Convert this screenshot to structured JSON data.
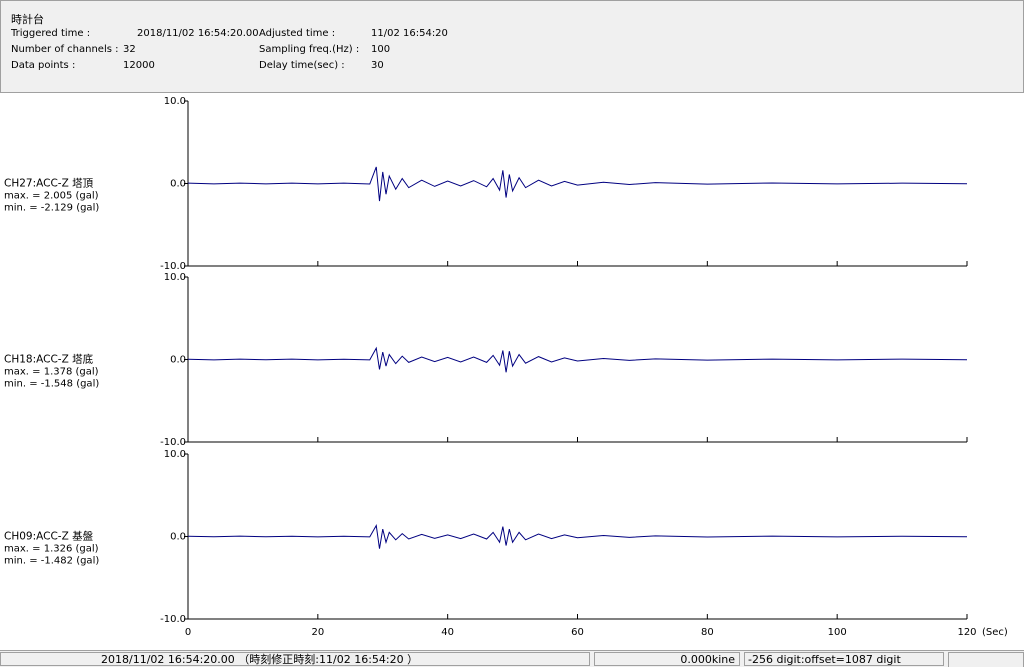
{
  "header": {
    "title": "時計台",
    "rows": [
      [
        {
          "label": "Triggered time :",
          "value": "2018/11/02 16:54:20.00"
        },
        {
          "label": "Adjusted time :",
          "value": "11/02 16:54:20"
        }
      ],
      [
        {
          "label": "Number of channels :",
          "value": 32
        },
        {
          "label": "Sampling freq.(Hz) :",
          "value": 100
        }
      ],
      [
        {
          "label": "Data points :",
          "value": 12000
        },
        {
          "label": "Delay time(sec) :",
          "value": 30
        }
      ]
    ]
  },
  "chart_data": [
    {
      "type": "line",
      "title": "CH27:ACC-Z 塔頂",
      "max_label": "max. = 2.005 (gal)",
      "min_label": "min. = -2.129 (gal)",
      "x": [
        0,
        4,
        8,
        12,
        16,
        20,
        24,
        28,
        29,
        29.5,
        30,
        30.5,
        31,
        32,
        33,
        34,
        36,
        38,
        40,
        42,
        44,
        46,
        47,
        48,
        48.5,
        49,
        49.5,
        50,
        51,
        52,
        54,
        56,
        58,
        60,
        64,
        68,
        72,
        80,
        90,
        100,
        110,
        120
      ],
      "series": [
        {
          "color": "#000080",
          "values": [
            0.04,
            -0.05,
            0.05,
            -0.04,
            0.05,
            -0.05,
            0.04,
            -0.06,
            2.005,
            -2.129,
            1.4,
            -1.3,
            0.9,
            -0.7,
            0.6,
            -0.5,
            0.4,
            -0.35,
            0.3,
            -0.3,
            0.35,
            -0.4,
            0.6,
            -0.8,
            1.6,
            -1.7,
            1.1,
            -0.9,
            0.7,
            -0.5,
            0.4,
            -0.3,
            0.25,
            -0.2,
            0.15,
            -0.12,
            0.1,
            -0.08,
            0.06,
            -0.05,
            0.04,
            -0.03
          ]
        }
      ],
      "xlim": [
        0,
        120
      ],
      "ylim": [
        -10,
        10
      ],
      "yticks": [
        {
          "value": 10,
          "label": "10.0"
        },
        {
          "value": 0,
          "label": "0.0"
        },
        {
          "value": -10,
          "label": "-10.0"
        }
      ]
    },
    {
      "type": "line",
      "title": "CH18:ACC-Z 塔底",
      "max_label": "max. = 1.378 (gal)",
      "min_label": "min. = -1.548 (gal)",
      "x": [
        0,
        4,
        8,
        12,
        16,
        20,
        24,
        28,
        29,
        29.5,
        30,
        30.5,
        31,
        32,
        33,
        34,
        36,
        38,
        40,
        42,
        44,
        46,
        47,
        48,
        48.5,
        49,
        49.5,
        50,
        51,
        52,
        54,
        56,
        58,
        60,
        64,
        68,
        72,
        80,
        90,
        100,
        110,
        120
      ],
      "series": [
        {
          "color": "#000080",
          "values": [
            0.03,
            -0.04,
            0.04,
            -0.03,
            0.04,
            -0.04,
            0.03,
            -0.05,
            1.378,
            -1.2,
            0.9,
            -0.8,
            0.6,
            -0.5,
            0.4,
            -0.35,
            0.3,
            -0.25,
            0.25,
            -0.3,
            0.3,
            -0.35,
            0.5,
            -0.7,
            1.1,
            -1.548,
            1.0,
            -0.8,
            0.6,
            -0.45,
            0.35,
            -0.3,
            0.2,
            -0.18,
            0.12,
            -0.1,
            0.08,
            -0.07,
            0.05,
            -0.04,
            0.04,
            -0.03
          ]
        }
      ],
      "xlim": [
        0,
        120
      ],
      "ylim": [
        -10,
        10
      ],
      "yticks": [
        {
          "value": 10,
          "label": "10.0"
        },
        {
          "value": 0,
          "label": "0.0"
        },
        {
          "value": -10,
          "label": "-10.0"
        }
      ]
    },
    {
      "type": "line",
      "title": "CH09:ACC-Z 基盤",
      "max_label": "max. = 1.326 (gal)",
      "min_label": "min. = -1.482 (gal)",
      "x": [
        0,
        4,
        8,
        12,
        16,
        20,
        24,
        28,
        29,
        29.5,
        30,
        30.5,
        31,
        32,
        33,
        34,
        36,
        38,
        40,
        42,
        44,
        46,
        47,
        48,
        48.5,
        49,
        49.5,
        50,
        51,
        52,
        54,
        56,
        58,
        60,
        64,
        68,
        72,
        80,
        90,
        100,
        110,
        120
      ],
      "series": [
        {
          "color": "#000080",
          "values": [
            0.03,
            -0.03,
            0.04,
            -0.03,
            0.03,
            -0.04,
            0.03,
            -0.05,
            1.326,
            -1.482,
            0.9,
            -0.7,
            0.5,
            -0.4,
            0.35,
            -0.3,
            0.25,
            -0.22,
            0.2,
            -0.25,
            0.3,
            -0.3,
            0.5,
            -0.7,
            1.2,
            -1.1,
            0.9,
            -0.7,
            0.5,
            -0.4,
            0.3,
            -0.25,
            0.2,
            -0.15,
            0.12,
            -0.1,
            0.08,
            -0.06,
            0.05,
            -0.04,
            0.03,
            -0.03
          ]
        }
      ],
      "xlim": [
        0,
        120
      ],
      "ylim": [
        -10,
        10
      ],
      "yticks": [
        {
          "value": 10,
          "label": "10.0"
        },
        {
          "value": 0,
          "label": "0.0"
        },
        {
          "value": -10,
          "label": "-10.0"
        }
      ],
      "xticks": [
        0,
        20,
        40,
        60,
        80,
        100,
        120
      ],
      "x_unit": "(Sec)"
    }
  ],
  "status_bar": {
    "time": "2018/11/02 16:54:20.00 （時刻修正時刻:11/02 16:54:20 ）",
    "velocity": "0.000kine",
    "digit": "-256 digit:offset=1087 digit"
  }
}
